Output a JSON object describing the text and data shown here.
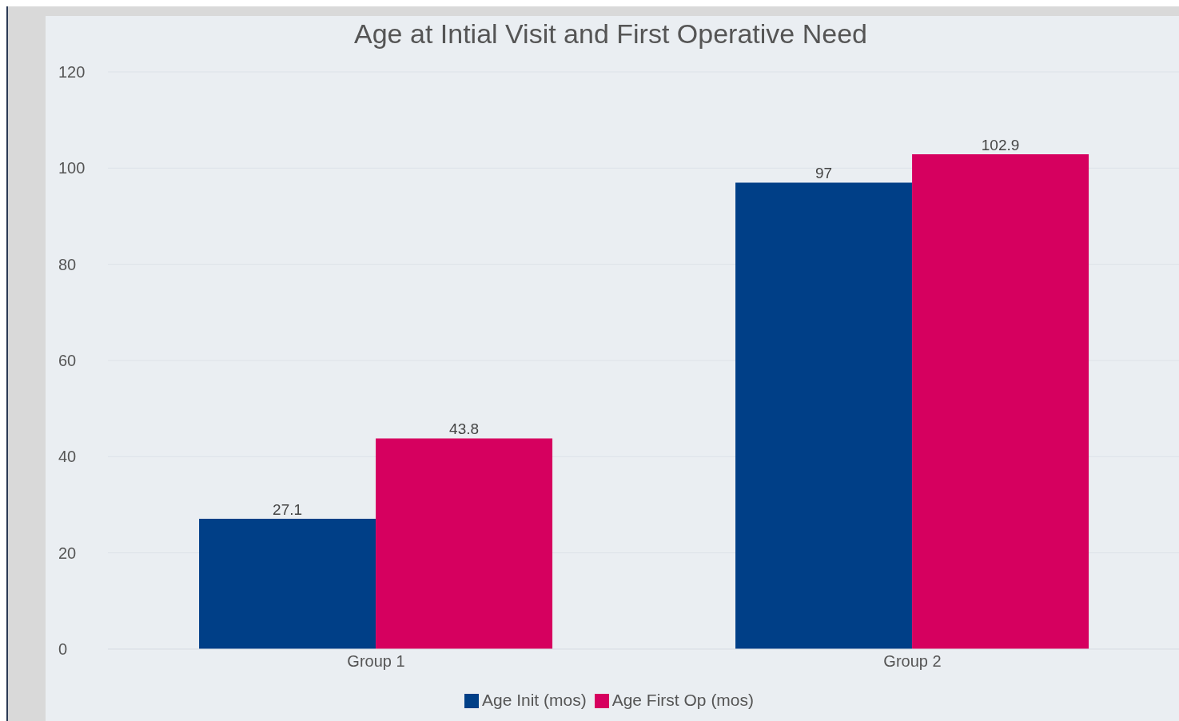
{
  "chart_data": {
    "type": "bar",
    "title": "Age at Intial Visit and First Operative Need",
    "categories": [
      "Group 1",
      "Group 2"
    ],
    "series": [
      {
        "name": "Age Init (mos)",
        "color": "#003f87",
        "values": [
          27.1,
          97
        ]
      },
      {
        "name": "Age First Op (mos)",
        "color": "#d6005f",
        "values": [
          43.8,
          102.9
        ]
      }
    ],
    "ylim": [
      0,
      120
    ],
    "yticks": [
      0,
      20,
      40,
      60,
      80,
      100,
      120
    ],
    "grid": "y",
    "legend": "bottom",
    "data_labels": true
  }
}
